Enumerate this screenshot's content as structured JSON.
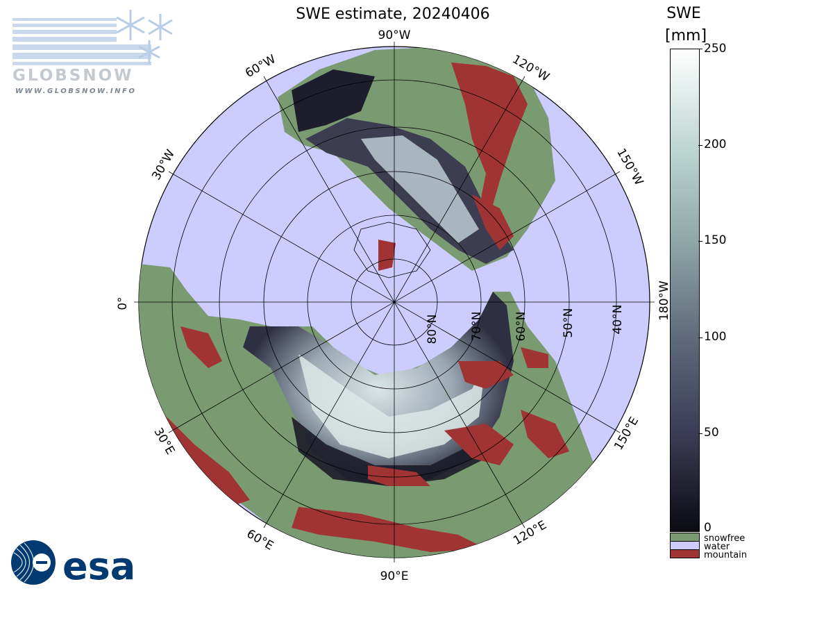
{
  "map": {
    "title": "SWE estimate, 20240406",
    "longitude_labels": [
      "90°W",
      "60°W",
      "120°W",
      "30°W",
      "150°W",
      "0°",
      "180°W",
      "30°E",
      "150°E",
      "60°E",
      "120°E",
      "90°E"
    ],
    "latitude_labels": [
      "80°N",
      "70°N",
      "60°N",
      "50°N",
      "40°N"
    ]
  },
  "colorbar": {
    "title_line1": "SWE",
    "title_line2": "[mm]",
    "ticks": [
      "250",
      "200",
      "150",
      "100",
      "50",
      "0"
    ],
    "colors": {
      "high": "#ffffff",
      "mid": "#8fa6a6",
      "low": "#0b0b12"
    }
  },
  "legend": [
    {
      "label": "snowfree",
      "color": "#7a9a72"
    },
    {
      "label": "water",
      "color": "#ccccff"
    },
    {
      "label": "mountain",
      "color": "#a03333"
    }
  ],
  "logos": {
    "globsnow_text": "GLOBSNOW",
    "globsnow_url": "WWW.GLOBSNOW.INFO",
    "esa_text": "esa"
  }
}
